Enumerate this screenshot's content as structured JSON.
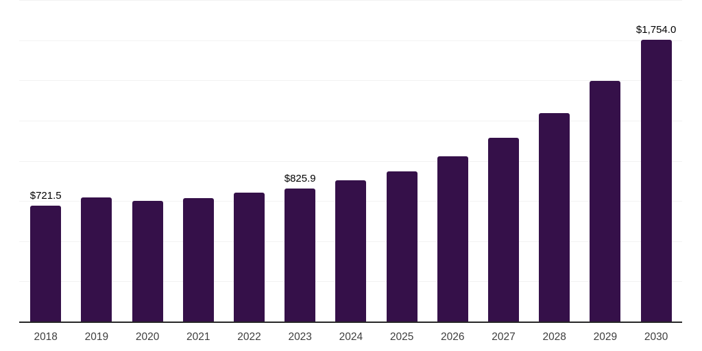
{
  "chart_data": {
    "type": "bar",
    "title": "",
    "xlabel": "",
    "ylabel": "",
    "categories": [
      "2018",
      "2019",
      "2020",
      "2021",
      "2022",
      "2023",
      "2024",
      "2025",
      "2026",
      "2027",
      "2028",
      "2029",
      "2030"
    ],
    "values": [
      721.5,
      772,
      750,
      768,
      800,
      825.9,
      877,
      935,
      1026,
      1144,
      1296,
      1495,
      1754
    ],
    "data_labels": [
      "$721.5",
      null,
      null,
      null,
      null,
      "$825.9",
      null,
      null,
      null,
      null,
      null,
      null,
      "$1,754.0"
    ],
    "ylim": [
      0,
      2000
    ],
    "grid_step": 250,
    "grid": true,
    "legend": false,
    "colors": {
      "bar": "#351049",
      "axis": "#262626",
      "gridline": "#f2f2f2",
      "data_label": "#000000",
      "tick_label": "#3d3d3d",
      "background": "#ffffff"
    }
  }
}
